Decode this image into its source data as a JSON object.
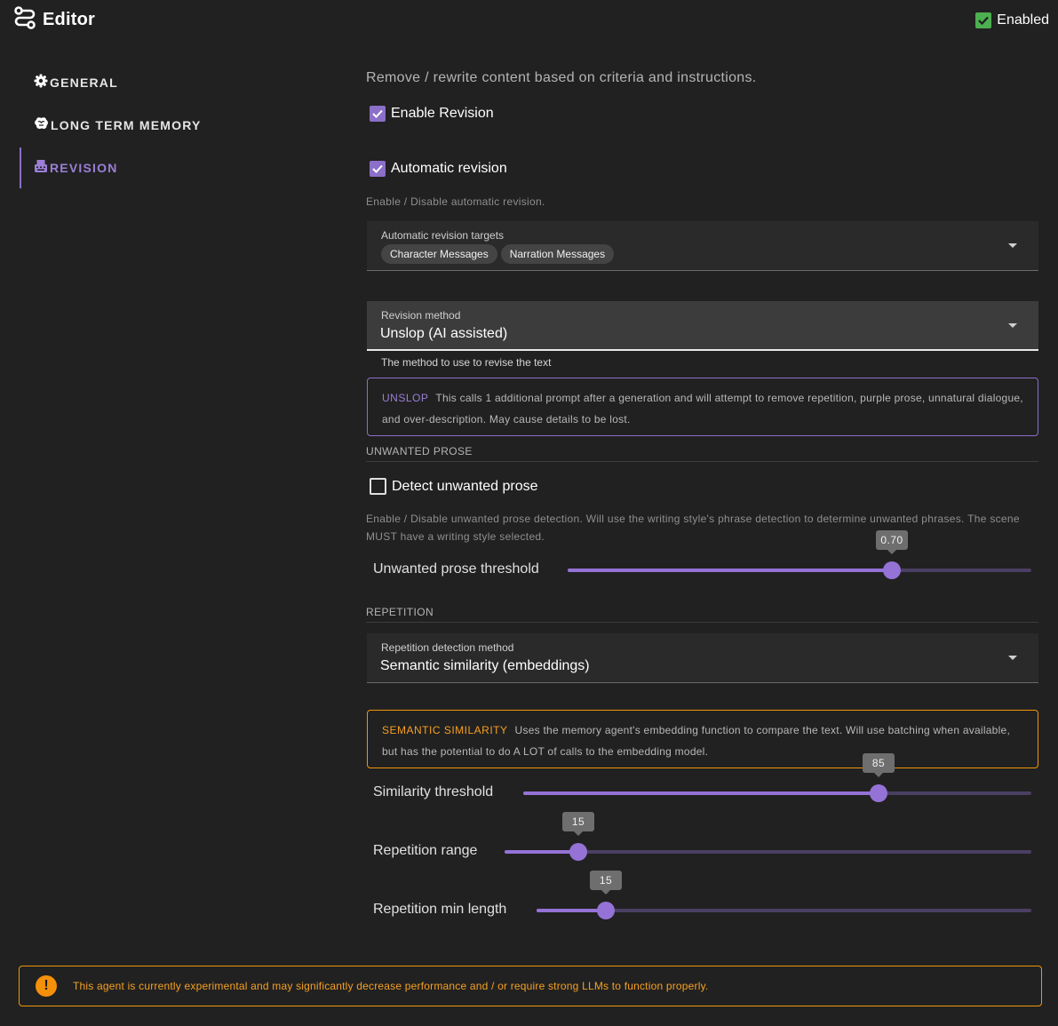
{
  "header": {
    "title": "Editor",
    "icon": "agent-route-icon",
    "enabled_label": "Enabled",
    "enabled_checked": true
  },
  "sidebar": {
    "items": [
      {
        "label": "GENERAL",
        "icon": "gear-icon"
      },
      {
        "label": "LONG TERM MEMORY",
        "icon": "brain-icon"
      },
      {
        "label": "REVISION",
        "icon": "typewriter-icon",
        "active": true
      }
    ]
  },
  "main": {
    "intro": "Remove / rewrite content based on criteria and instructions.",
    "enable_revision": {
      "label": "Enable Revision",
      "checked": true
    },
    "automatic_revision": {
      "label": "Automatic revision",
      "checked": true,
      "hint": "Enable / Disable automatic revision."
    },
    "targets": {
      "label": "Automatic revision targets",
      "chips": [
        "Character Messages",
        "Narration Messages"
      ]
    },
    "method": {
      "label": "Revision method",
      "value": "Unslop (AI assisted)",
      "hint": "The method to use to revise the text"
    },
    "unslop_info": {
      "tag": "UNSLOP",
      "text": "This calls 1 additional prompt after a generation and will attempt to remove repetition, purple prose, unnatural dialogue, and over-description. May cause details to be lost.",
      "color": "#8b6fc9"
    },
    "unwanted_prose": {
      "section": "UNWANTED PROSE",
      "detect": {
        "label": "Detect unwanted prose",
        "checked": false
      },
      "hint": "Enable / Disable unwanted prose detection. Will use the writing style's phrase detection to determine unwanted phrases. The scene MUST have a writing style selected.",
      "threshold": {
        "label": "Unwanted prose threshold",
        "display": "0.70",
        "value": 0.7,
        "min": 0,
        "max": 1
      }
    },
    "repetition": {
      "section": "REPETITION",
      "method": {
        "label": "Repetition detection method",
        "value": "Semantic similarity (embeddings)"
      },
      "info": {
        "tag": "SEMANTIC SIMILARITY",
        "text": "Uses the memory agent's embedding function to compare the text. Will use batching when available, but has the potential to do A LOT of calls to the embedding model.",
        "color": "#f0950a"
      },
      "similarity": {
        "label": "Similarity threshold",
        "display": "85",
        "fraction": 0.7
      },
      "range": {
        "label": "Repetition range",
        "display": "15",
        "fraction": 0.14
      },
      "min_length": {
        "label": "Repetition min length",
        "display": "15",
        "fraction": 0.14
      }
    }
  },
  "warning": {
    "icon": "exclamation-icon",
    "text": "This agent is currently experimental and may significantly decrease performance and / or require strong LLMs to function properly.",
    "color": "#f0950a"
  }
}
